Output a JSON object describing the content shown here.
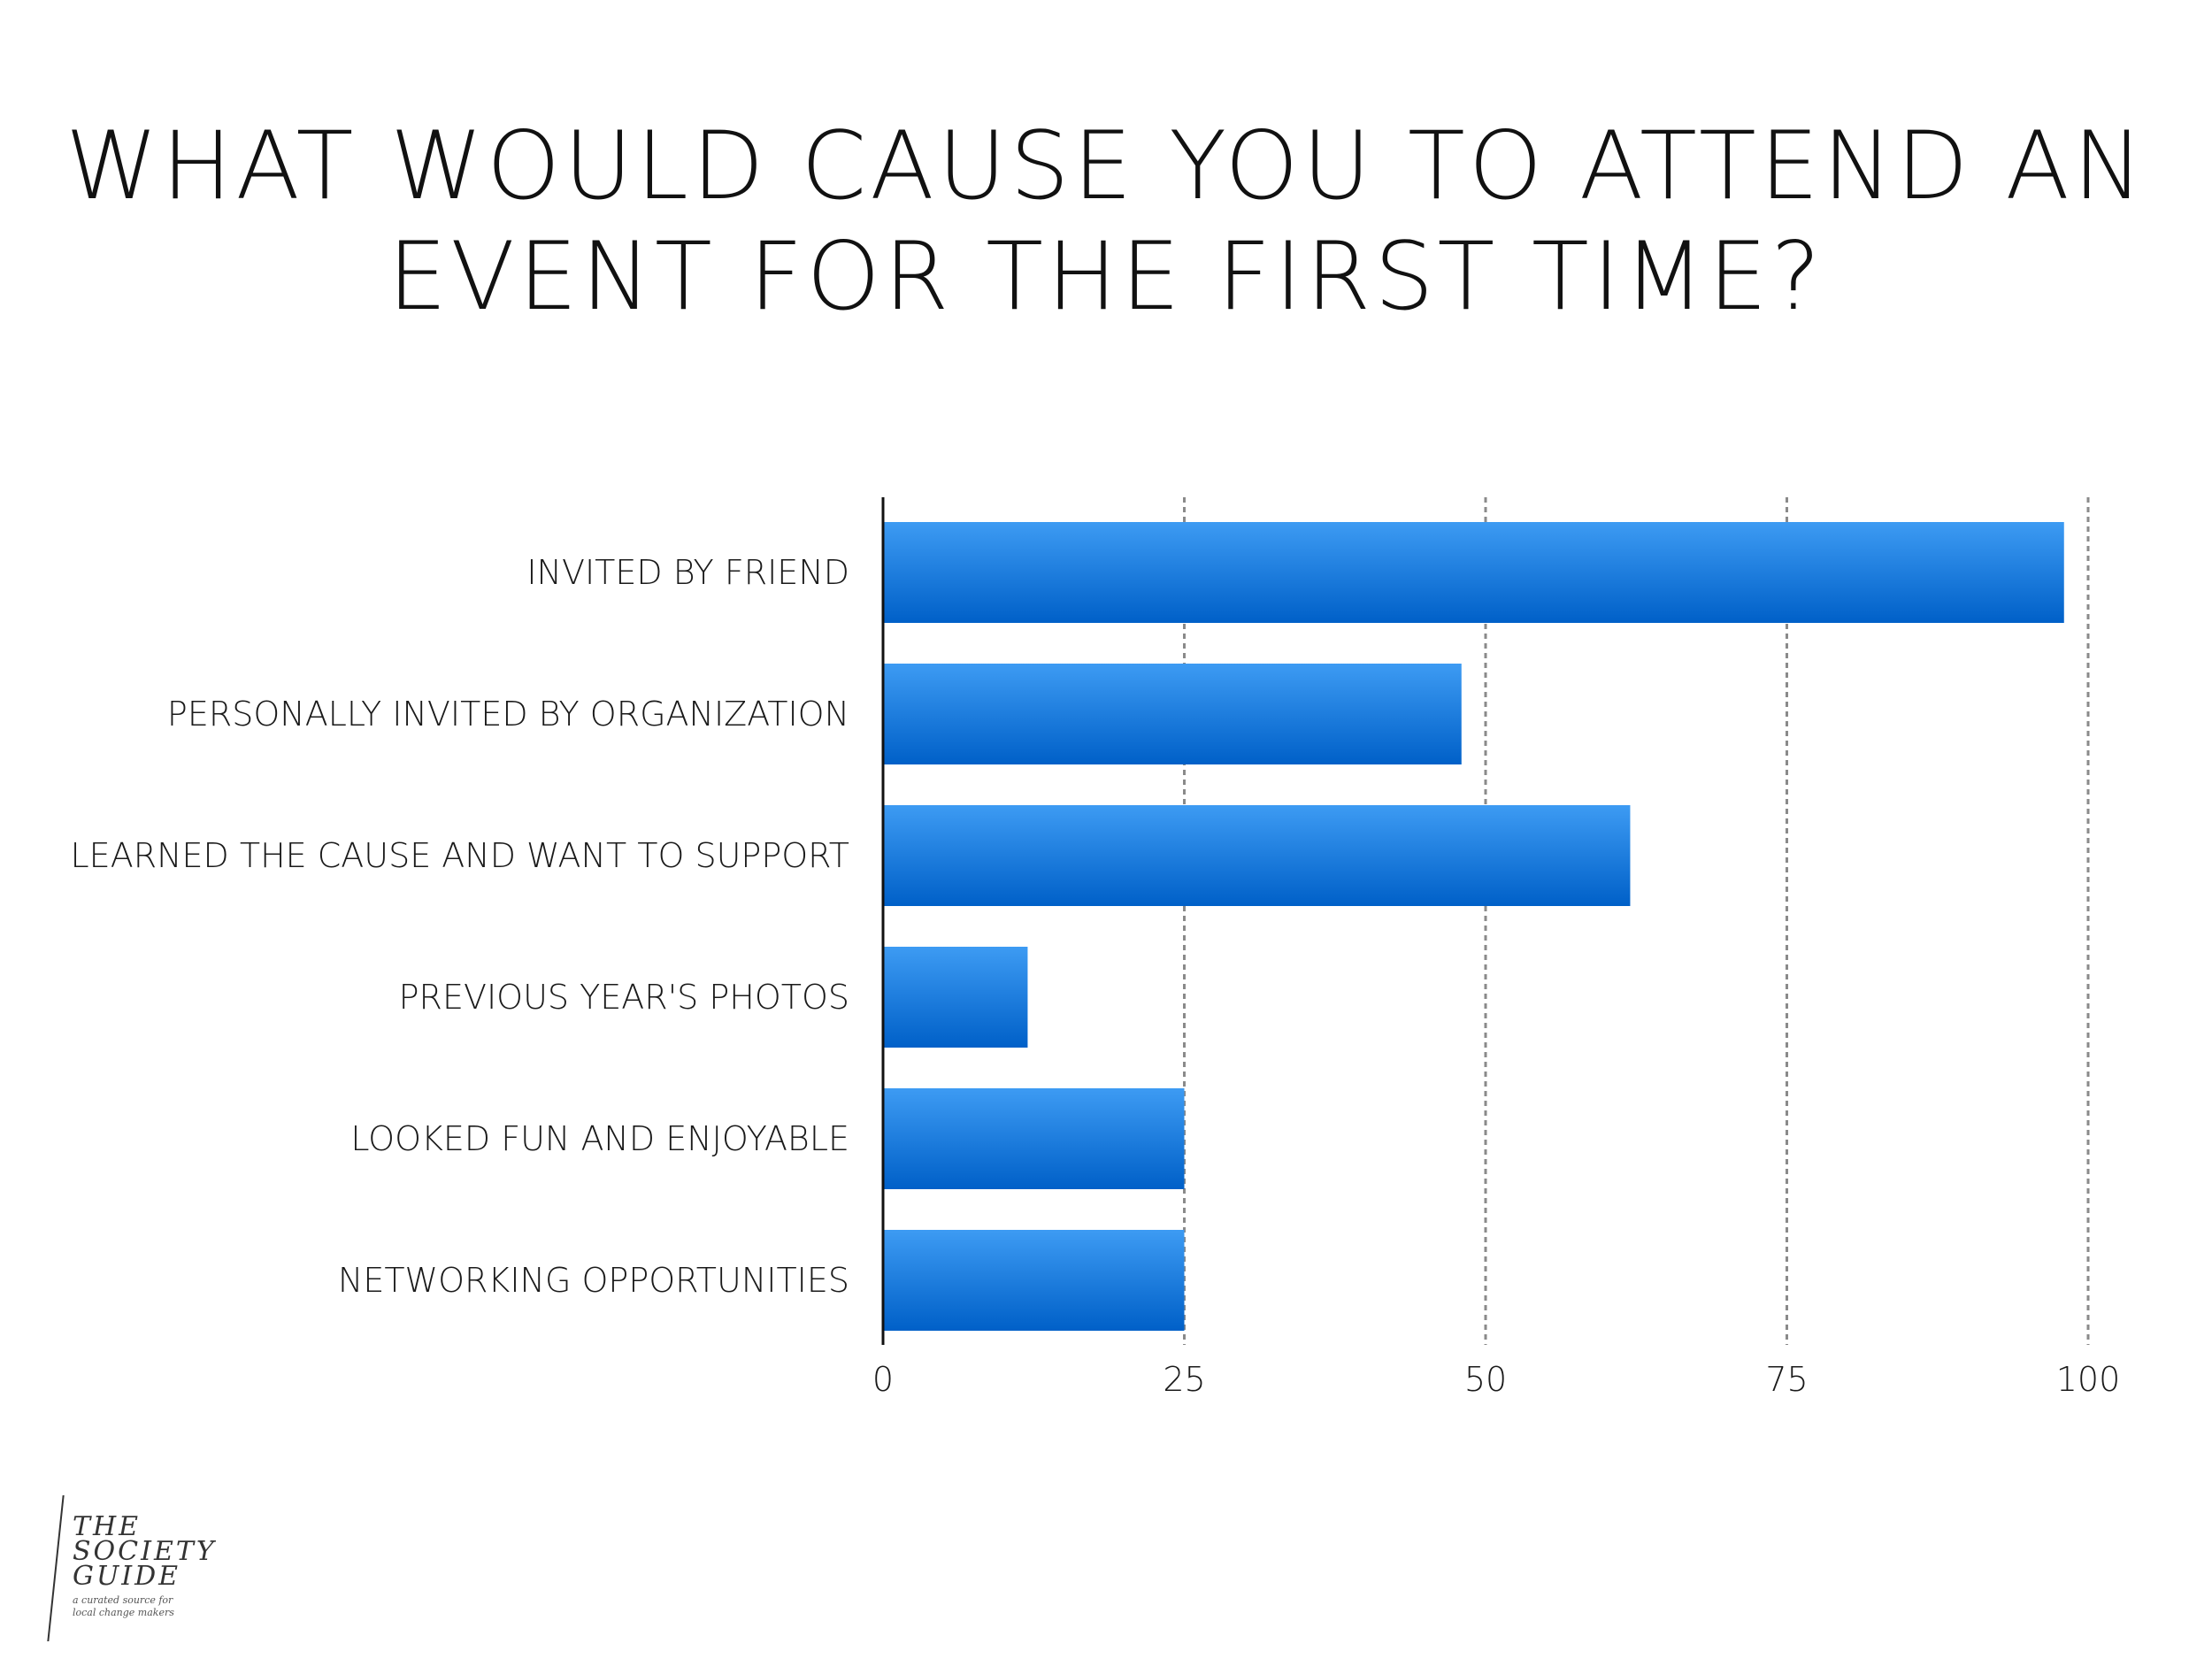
{
  "title": {
    "line1": "WHAT WOULD CAUSE YOU TO ATTEND AN",
    "line2": "EVENT FOR THE FIRST TIME?"
  },
  "chart_data": {
    "type": "bar",
    "orientation": "horizontal",
    "categories": [
      "INVITED BY FRIEND",
      "PERSONALLY INVITED BY ORGANIZATION",
      "LEARNED THE CAUSE AND WANT TO SUPPORT",
      "PREVIOUS YEAR'S PHOTOS",
      "LOOKED FUN AND ENJOYABLE",
      "NETWORKING OPPORTUNITIES"
    ],
    "values": [
      98,
      48,
      62,
      12,
      25,
      25
    ],
    "xlim": [
      0,
      100
    ],
    "xticks": [
      0,
      25,
      50,
      75,
      100
    ],
    "grid": "vertical dashed",
    "bar_color_top": "#3d9bf3",
    "bar_color_bottom": "#0060c8"
  },
  "logo": {
    "line1": "THE",
    "line2": "SOCIETY",
    "line3": "GUIDE",
    "tagline1": "a curated source for",
    "tagline2": "local change makers"
  }
}
